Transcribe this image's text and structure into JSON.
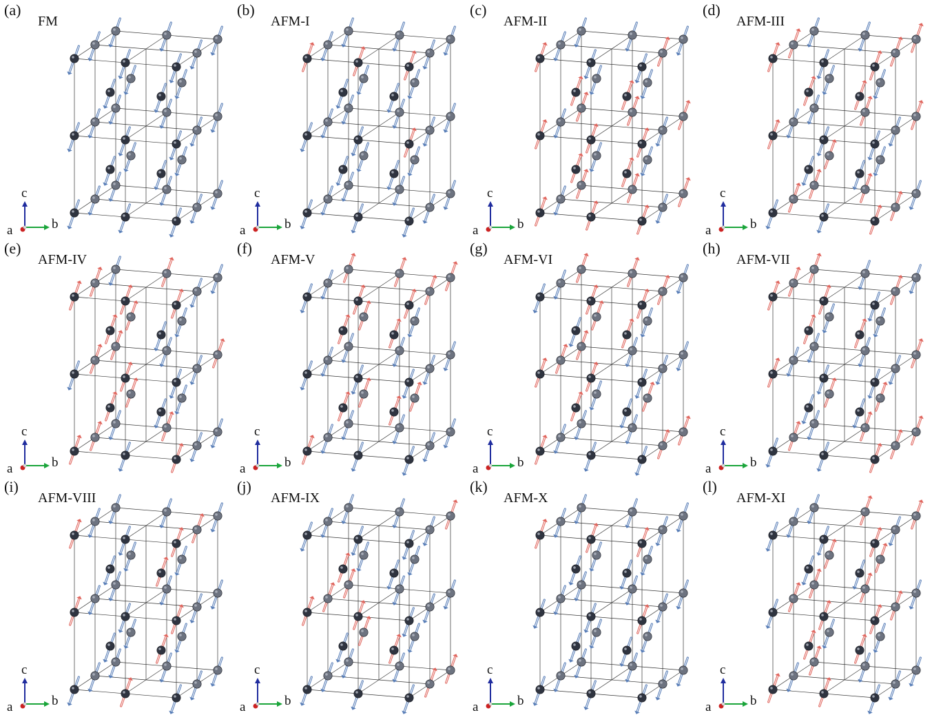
{
  "colors": {
    "up_arrow": "#e0665e",
    "down_arrow": "#5a7fb8",
    "atom_front": "#2f3440",
    "atom_back": "#6d7380",
    "frame": "#333333",
    "axis_c": "#1f2c9e",
    "axis_b": "#1aa53a",
    "axis_a": "#cc2222"
  },
  "axes": {
    "c": "c",
    "a": "a",
    "b": "b"
  },
  "panels": [
    {
      "letter": "(a)",
      "title": "FM",
      "spins": "DDDDDDDDDDDDDDDDDDDDDDDDDDDDDDDDDDDDDDDD"
    },
    {
      "letter": "(b)",
      "title": "AFM-I",
      "spins": "DDDDDDDDDDDDDDDDDDDDDDDDDDDDUUUUUUUUUUUU"
    },
    {
      "letter": "(c)",
      "title": "AFM-II",
      "spins": "UUUUUUDDDDDDDDDDDDUUUUUUUUUUUUDDDDDDUUUU"
    },
    {
      "letter": "(d)",
      "title": "AFM-III",
      "spins": "UUDDUUDDUUDDDUUDDUUDDUUDDUUDDUDUDUDUDUDU"
    },
    {
      "letter": "(e)",
      "title": "AFM-IV",
      "spins": "DUDUDUDUDUDUDUDUDUDUDUDUDUDUDUUUUUUDDDDD"
    },
    {
      "letter": "(f)",
      "title": "AFM-V",
      "spins": "DDDDDDUUUUUUDDDDDDUUUUUUDDDDDDUUUUUUDDDD"
    },
    {
      "letter": "(g)",
      "title": "AFM-VI",
      "spins": "DDUUDDUUDDUUDDUUDDUUDDUUDDUUDDUUDDUUDDUU"
    },
    {
      "letter": "(h)",
      "title": "AFM-VII",
      "spins": "DUUDDUUDDUUDDUUDDUUDDUUDDUUDDUUDDUUDDUUD"
    },
    {
      "letter": "(i)",
      "title": "AFM-VIII",
      "spins": "DDDDDDDDDDDDDDDDDDUDUDUDUDUDUUDUDDUDUDUD"
    },
    {
      "letter": "(j)",
      "title": "AFM-IX",
      "spins": "DDUUDDDDUUDDDDUUDDDDUUDDDDUUDDDDUUUUUUUU"
    },
    {
      "letter": "(k)",
      "title": "AFM-X",
      "spins": "DDDDDDDDDDDDDDDDDDDDDDDDDDDDUUUUUUUUUUUU"
    },
    {
      "letter": "(l)",
      "title": "AFM-XI",
      "spins": "UDDUUDDUUDDUUDDUUDDUUDDUUDDUUDDUUUUUUUUU"
    }
  ]
}
